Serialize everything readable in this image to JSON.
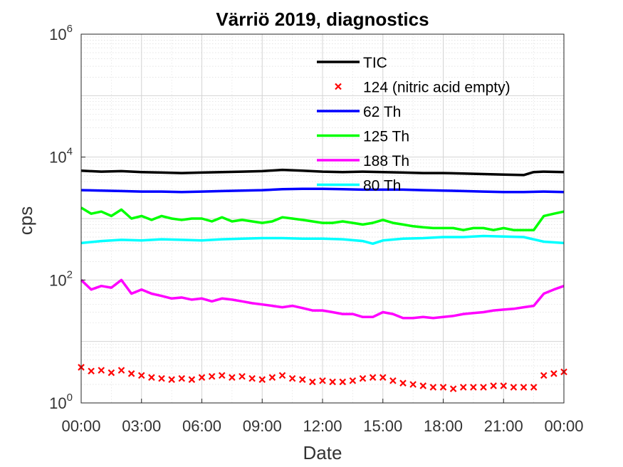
{
  "chart_data": {
    "type": "line",
    "title": "Värriö 2019, diagnostics",
    "xlabel": "Date",
    "ylabel": "cps",
    "yscale": "log",
    "ylim": [
      1,
      1000000
    ],
    "xlim_hours": [
      0,
      24
    ],
    "grid": true,
    "legend_position": "top-center",
    "x_ticks": [
      "00:00",
      "03:00",
      "06:00",
      "09:00",
      "12:00",
      "15:00",
      "18:00",
      "21:00",
      "00:00"
    ],
    "y_ticks": [
      {
        "base": "10",
        "exp": "0"
      },
      {
        "base": "10",
        "exp": "2"
      },
      {
        "base": "10",
        "exp": "4"
      },
      {
        "base": "10",
        "exp": "6"
      }
    ],
    "series": [
      {
        "name": "TIC",
        "color": "#000000",
        "style": "line",
        "x": [
          0,
          1,
          2,
          3,
          4,
          5,
          6,
          7,
          8,
          9,
          10,
          11,
          12,
          13,
          14,
          15,
          16,
          17,
          18,
          19,
          20,
          21,
          22,
          22.5,
          23,
          24
        ],
        "y": [
          6000,
          5800,
          5900,
          5700,
          5600,
          5500,
          5600,
          5700,
          5800,
          5900,
          6200,
          6000,
          5800,
          5700,
          5800,
          5700,
          5600,
          5500,
          5500,
          5400,
          5300,
          5200,
          5100,
          5700,
          5800,
          5700
        ]
      },
      {
        "name": "124 (nitric acid empty)",
        "color": "#ff0000",
        "style": "markers",
        "x": [
          0,
          0.5,
          1,
          1.5,
          2,
          2.5,
          3,
          3.5,
          4,
          4.5,
          5,
          5.5,
          6,
          6.5,
          7,
          7.5,
          8,
          8.5,
          9,
          9.5,
          10,
          10.5,
          11,
          11.5,
          12,
          12.5,
          13,
          13.5,
          14,
          14.5,
          15,
          15.5,
          16,
          16.5,
          17,
          17.5,
          18,
          18.5,
          19,
          19.5,
          20,
          20.5,
          21,
          21.5,
          22,
          22.5,
          23,
          23.5,
          24
        ],
        "y": [
          3.8,
          3.3,
          3.4,
          3.1,
          3.4,
          3.0,
          2.8,
          2.6,
          2.5,
          2.4,
          2.5,
          2.4,
          2.6,
          2.7,
          2.8,
          2.6,
          2.7,
          2.5,
          2.4,
          2.6,
          2.8,
          2.5,
          2.4,
          2.2,
          2.3,
          2.2,
          2.2,
          2.3,
          2.5,
          2.6,
          2.6,
          2.3,
          2.1,
          2.0,
          1.9,
          1.8,
          1.8,
          1.7,
          1.8,
          1.8,
          1.8,
          1.9,
          1.9,
          1.8,
          1.8,
          1.8,
          2.8,
          3.0,
          3.2
        ]
      },
      {
        "name": "62 Th",
        "color": "#0000ff",
        "style": "line",
        "x": [
          0,
          1,
          2,
          3,
          4,
          5,
          6,
          7,
          8,
          9,
          10,
          11,
          12,
          13,
          14,
          15,
          16,
          17,
          18,
          19,
          20,
          21,
          22,
          23,
          24
        ],
        "y": [
          2900,
          2850,
          2800,
          2750,
          2750,
          2700,
          2750,
          2800,
          2850,
          2900,
          3000,
          3050,
          3050,
          3000,
          2950,
          2950,
          2950,
          2900,
          2850,
          2800,
          2750,
          2700,
          2700,
          2750,
          2700
        ]
      },
      {
        "name": "125 Th",
        "color": "#00ff00",
        "style": "line",
        "x": [
          0,
          0.5,
          1,
          1.5,
          2,
          2.5,
          3,
          3.5,
          4,
          4.5,
          5,
          5.5,
          6,
          6.5,
          7,
          7.5,
          8,
          8.5,
          9,
          9.5,
          10,
          10.5,
          11,
          11.5,
          12,
          12.5,
          13,
          13.5,
          14,
          14.5,
          15,
          15.5,
          16,
          16.5,
          17,
          17.5,
          18,
          18.5,
          19,
          19.5,
          20,
          20.5,
          21,
          21.5,
          22,
          22.5,
          23,
          23.5,
          24
        ],
        "y": [
          1500,
          1200,
          1300,
          1100,
          1400,
          1000,
          1100,
          950,
          1100,
          1000,
          950,
          1000,
          1000,
          900,
          1050,
          900,
          950,
          900,
          850,
          900,
          1050,
          1000,
          950,
          900,
          850,
          850,
          900,
          850,
          800,
          850,
          950,
          850,
          800,
          750,
          720,
          700,
          700,
          700,
          650,
          700,
          700,
          650,
          700,
          650,
          650,
          650,
          1100,
          1200,
          1300
        ]
      },
      {
        "name": "188 Th",
        "color": "#ff00ff",
        "style": "line",
        "x": [
          0,
          0.5,
          1,
          1.5,
          2,
          2.5,
          3,
          3.5,
          4,
          4.5,
          5,
          5.5,
          6,
          6.5,
          7,
          7.5,
          8,
          8.5,
          9,
          9.5,
          10,
          10.5,
          11,
          11.5,
          12,
          12.5,
          13,
          13.5,
          14,
          14.5,
          15,
          15.5,
          16,
          16.5,
          17,
          17.5,
          18,
          18.5,
          19,
          19.5,
          20,
          20.5,
          21,
          21.5,
          22,
          22.5,
          23,
          23.5,
          24
        ],
        "y": [
          100,
          70,
          80,
          75,
          100,
          60,
          70,
          60,
          55,
          50,
          52,
          48,
          50,
          45,
          50,
          48,
          45,
          42,
          40,
          38,
          36,
          38,
          35,
          32,
          32,
          30,
          28,
          28,
          25,
          25,
          30,
          28,
          24,
          24,
          25,
          24,
          25,
          26,
          28,
          29,
          30,
          32,
          33,
          34,
          36,
          38,
          60,
          70,
          80
        ]
      },
      {
        "name": "80 Th",
        "color": "#00ffff",
        "style": "line",
        "x": [
          0,
          1,
          2,
          3,
          4,
          5,
          6,
          7,
          8,
          9,
          10,
          11,
          12,
          13,
          14,
          14.5,
          15,
          16,
          17,
          18,
          19,
          20,
          21,
          22,
          23,
          24
        ],
        "y": [
          400,
          430,
          450,
          440,
          460,
          450,
          440,
          460,
          470,
          480,
          480,
          470,
          470,
          460,
          430,
          390,
          440,
          470,
          480,
          500,
          500,
          520,
          510,
          500,
          420,
          400
        ]
      }
    ]
  }
}
